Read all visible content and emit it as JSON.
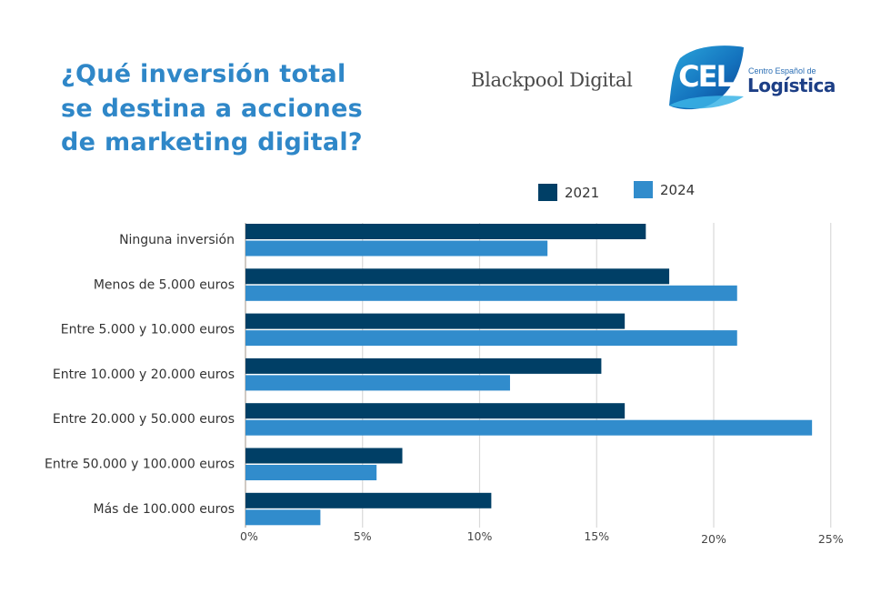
{
  "header": {
    "title_lines": [
      "¿Qué inversión total",
      "se destina a acciones",
      "de marketing digital?"
    ],
    "logos": {
      "blackpool": "Blackpool Digital",
      "cel_mark": "CEL",
      "cel_subtitle": "Centro Español de",
      "cel_name": "Logística"
    }
  },
  "colors": {
    "title": "#2f87c8",
    "series_2021": "#003f66",
    "series_2024": "#318ccc",
    "grid": "#d9d9d9"
  },
  "chart_data": {
    "type": "bar",
    "orientation": "horizontal",
    "title": "¿Qué inversión total se destina a acciones de marketing digital?",
    "xlabel": "",
    "ylabel": "",
    "categories": [
      "Ninguna inversión",
      "Menos de 5.000 euros",
      "Entre 5.000 y 10.000 euros",
      "Entre 10.000 y 20.000 euros",
      "Entre 20.000 y 50.000 euros",
      "Entre 50.000 y 100.000 euros",
      "Más de 100.000 euros"
    ],
    "series": [
      {
        "name": "2021",
        "values": [
          17.1,
          18.1,
          16.2,
          15.2,
          16.2,
          6.7,
          10.5
        ]
      },
      {
        "name": "2024",
        "values": [
          12.9,
          21.0,
          21.0,
          11.3,
          24.2,
          5.6,
          3.2
        ]
      }
    ],
    "xlim": [
      0,
      25
    ],
    "x_ticks": [
      0,
      5,
      10,
      15,
      20,
      25
    ],
    "x_tick_labels": [
      "0%",
      "5%",
      "10%",
      "15%",
      "20%",
      "25%"
    ],
    "grid": true,
    "legend": [
      "2021",
      "2024"
    ],
    "legend_position": "top-right"
  }
}
